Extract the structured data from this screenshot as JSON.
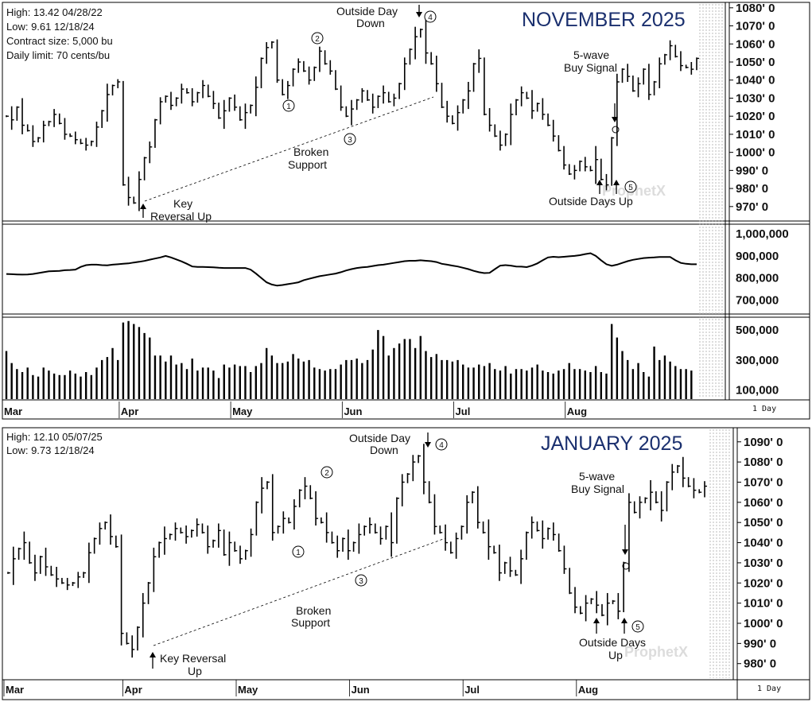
{
  "palette": {
    "bar": "#000000",
    "accent_title": "#1a2f6e",
    "grid_hatch": "#bbbbbb",
    "annotation": "#000000"
  },
  "chart_data": [
    {
      "type": "ohlc",
      "title": "NOVEMBER 2025",
      "info": [
        "High: 13.42   04/28/22",
        "Low:   9.61   12/18/24",
        "Contract size: 5,000 bu",
        "Daily limit: 70 cents/bu"
      ],
      "ylim": [
        962,
        1083
      ],
      "yticks": [
        {
          "v": 1080,
          "t": "1080' 0"
        },
        {
          "v": 1070,
          "t": "1070' 0"
        },
        {
          "v": 1060,
          "t": "1060' 0"
        },
        {
          "v": 1050,
          "t": "1050' 0"
        },
        {
          "v": 1040,
          "t": "1040' 0"
        },
        {
          "v": 1030,
          "t": "1030' 0"
        },
        {
          "v": 1020,
          "t": "1020' 0"
        },
        {
          "v": 1010,
          "t": "1010' 0"
        },
        {
          "v": 1000,
          "t": "1000' 0"
        },
        {
          "v": 990,
          "t": "990' 0"
        },
        {
          "v": 980,
          "t": "980' 0"
        },
        {
          "v": 970,
          "t": "970' 0"
        }
      ],
      "months": [
        {
          "label": "Mar",
          "i": 0
        },
        {
          "label": "Apr",
          "i": 22
        },
        {
          "label": "May",
          "i": 43
        },
        {
          "label": "Jun",
          "i": 64
        },
        {
          "label": "Jul",
          "i": 85
        },
        {
          "label": "Aug",
          "i": 106
        }
      ],
      "interval_label": "1 Day",
      "closes": [
        1020,
        1018,
        1025,
        1015,
        1012,
        1006,
        1008,
        1015,
        1017,
        1021,
        1016,
        1010,
        1009,
        1007,
        1005,
        1004,
        1006,
        1014,
        1023,
        1032,
        1037,
        1039,
        982,
        975,
        972,
        985,
        997,
        1003,
        1018,
        1028,
        1031,
        1026,
        1030,
        1035,
        1033,
        1028,
        1033,
        1037,
        1031,
        1027,
        1019,
        1023,
        1030,
        1025,
        1018,
        1022,
        1026,
        1036,
        1052,
        1058,
        1061,
        1040,
        1032,
        1037,
        1046,
        1050,
        1045,
        1040,
        1047,
        1056,
        1049,
        1045,
        1035,
        1025,
        1020,
        1024,
        1029,
        1034,
        1029,
        1025,
        1031,
        1033,
        1028,
        1030,
        1038,
        1049,
        1057,
        1064,
        1068,
        1055,
        1049,
        1038,
        1025,
        1020,
        1016,
        1022,
        1029,
        1034,
        1049,
        1052,
        1021,
        1015,
        1009,
        1004,
        1010,
        1021,
        1029,
        1033,
        1030,
        1023,
        1027,
        1021,
        1015,
        1009,
        1001,
        993,
        988,
        990,
        995,
        992,
        990,
        996,
        985,
        982,
        1008,
        1039,
        1046,
        1042,
        1034,
        1038,
        1046,
        1032,
        1039,
        1049,
        1054,
        1059,
        1053,
        1048,
        1047,
        1046,
        1052
      ],
      "ranges": [
        1,
        11,
        1,
        10,
        1,
        6,
        1,
        5,
        1,
        6,
        1,
        6,
        1,
        5,
        1,
        6,
        1,
        6,
        1,
        12,
        1,
        3,
        1,
        9,
        1,
        9,
        1,
        6,
        1,
        5,
        1,
        5,
        1,
        6,
        1,
        5,
        1,
        6,
        1,
        6,
        1,
        12,
        1,
        4,
        1,
        10,
        1,
        12,
        1,
        6,
        1,
        3,
        1,
        5,
        1,
        4,
        1,
        5,
        1,
        5,
        1,
        4,
        1,
        4,
        1,
        10,
        1,
        3,
        1,
        7,
        1,
        8,
        1,
        5,
        1,
        7,
        1,
        11,
        1,
        12,
        1,
        9,
        1,
        7,
        1,
        8,
        1,
        10,
        1,
        10,
        1,
        7,
        1,
        6,
        1,
        12,
        1,
        7,
        1,
        9,
        1,
        6,
        1,
        6,
        1,
        5,
        1,
        6,
        1,
        5,
        1,
        15,
        1,
        6,
        1,
        9,
        1,
        6,
        1,
        7,
        1,
        6,
        1,
        7,
        1,
        6,
        1,
        6,
        1,
        6
      ],
      "volume_ylim": [
        40000,
        580000
      ],
      "volume_ticks": [
        {
          "v": 500000,
          "t": "500,000"
        },
        {
          "v": 300000,
          "t": "300,000"
        },
        {
          "v": 100000,
          "t": "100,000"
        }
      ],
      "volume": [
        360000,
        280000,
        240000,
        220000,
        250000,
        200000,
        190000,
        250000,
        230000,
        210000,
        200000,
        200000,
        230000,
        210000,
        190000,
        220000,
        200000,
        250000,
        300000,
        320000,
        380000,
        300000,
        550000,
        560000,
        540000,
        520000,
        480000,
        450000,
        330000,
        330000,
        290000,
        330000,
        270000,
        280000,
        240000,
        310000,
        230000,
        250000,
        250000,
        230000,
        180000,
        270000,
        250000,
        270000,
        260000,
        260000,
        220000,
        260000,
        280000,
        380000,
        330000,
        280000,
        280000,
        290000,
        340000,
        310000,
        290000,
        300000,
        250000,
        240000,
        230000,
        240000,
        240000,
        270000,
        300000,
        300000,
        310000,
        280000,
        300000,
        370000,
        500000,
        460000,
        330000,
        380000,
        410000,
        440000,
        440000,
        380000,
        460000,
        360000,
        320000,
        340000,
        300000,
        300000,
        290000,
        300000,
        270000,
        250000,
        250000,
        270000,
        260000,
        280000,
        240000,
        230000,
        260000,
        210000,
        240000,
        240000,
        230000,
        250000,
        270000,
        230000,
        220000,
        210000,
        230000,
        240000,
        280000,
        240000,
        240000,
        230000,
        220000,
        260000,
        220000,
        210000,
        540000,
        450000,
        360000,
        300000,
        240000,
        280000,
        220000,
        190000,
        390000,
        300000,
        330000,
        290000,
        260000,
        240000,
        240000,
        230000
      ],
      "oi_ylim": [
        640000,
        1040000
      ],
      "oi_ticks": [
        {
          "v": 1000000,
          "t": "1,000,000"
        },
        {
          "v": 900000,
          "t": "900,000"
        },
        {
          "v": 800000,
          "t": "800,000"
        },
        {
          "v": 700000,
          "t": "700,000"
        }
      ],
      "oi": [
        818000,
        817000,
        816000,
        815000,
        816000,
        818000,
        822000,
        826000,
        830000,
        831000,
        832000,
        835000,
        836000,
        838000,
        850000,
        858000,
        860000,
        860000,
        858000,
        857000,
        860000,
        862000,
        864000,
        866000,
        870000,
        873000,
        877000,
        883000,
        888000,
        893000,
        900000,
        893000,
        884000,
        875000,
        864000,
        852000,
        850000,
        850000,
        849000,
        848000,
        846000,
        845000,
        845000,
        845000,
        845000,
        845000,
        838000,
        820000,
        800000,
        780000,
        770000,
        765000,
        768000,
        772000,
        776000,
        780000,
        790000,
        796000,
        802000,
        808000,
        812000,
        816000,
        820000,
        826000,
        834000,
        840000,
        845000,
        848000,
        850000,
        854000,
        858000,
        860000,
        864000,
        868000,
        872000,
        876000,
        878000,
        878000,
        880000,
        878000,
        876000,
        872000,
        864000,
        860000,
        856000,
        852000,
        846000,
        840000,
        832000,
        826000,
        822000,
        823000,
        840000,
        856000,
        858000,
        856000,
        852000,
        851000,
        849000,
        856000,
        866000,
        880000,
        893000,
        896000,
        894000,
        896000,
        898000,
        900000,
        903000,
        908000,
        912000,
        900000,
        880000,
        862000,
        855000,
        860000,
        868000,
        876000,
        882000,
        886000,
        890000,
        892000,
        893000,
        895000,
        895000,
        895000,
        880000,
        868000,
        864000,
        862000,
        862000
      ],
      "annotations": [
        {
          "text": "Outside Day",
          "i": 104
        },
        {
          "text": "Down",
          "i": 104
        },
        {
          "text": "5-wave",
          "i": 120
        },
        {
          "text": "Buy Signal",
          "i": 120
        },
        {
          "text": "Broken",
          "i": 0
        },
        {
          "text": "Support",
          "i": 0
        },
        {
          "text": "Key",
          "i": 0
        },
        {
          "text": "Reversal Up",
          "i": 0
        },
        {
          "text": "Outside Days Up",
          "i": 0
        }
      ],
      "wave_labels": [
        "1",
        "2",
        "3",
        "4",
        "5"
      ],
      "watermark": "ProphetX"
    },
    {
      "type": "ohlc",
      "title": "JANUARY 2025",
      "info": [
        "High: 12.10  05/07/25",
        "Low:   9.73   12/18/24"
      ],
      "ylim": [
        972,
        1097
      ],
      "yticks": [
        {
          "v": 1090,
          "t": "1090' 0"
        },
        {
          "v": 1080,
          "t": "1080' 0"
        },
        {
          "v": 1070,
          "t": "1070' 0"
        },
        {
          "v": 1060,
          "t": "1060' 0"
        },
        {
          "v": 1050,
          "t": "1050' 0"
        },
        {
          "v": 1040,
          "t": "1040' 0"
        },
        {
          "v": 1030,
          "t": "1030' 0"
        },
        {
          "v": 1020,
          "t": "1020' 0"
        },
        {
          "v": 1010,
          "t": "1010' 0"
        },
        {
          "v": 1000,
          "t": "1000' 0"
        },
        {
          "v": 990,
          "t": "990' 0"
        },
        {
          "v": 980,
          "t": "980' 0"
        }
      ],
      "months": [
        {
          "label": "Mar",
          "i": 0
        },
        {
          "label": "Apr",
          "i": 22
        },
        {
          "label": "May",
          "i": 43
        },
        {
          "label": "Jun",
          "i": 64
        },
        {
          "label": "Jul",
          "i": 85
        },
        {
          "label": "Aug",
          "i": 106
        }
      ],
      "interval_label": "1 Day",
      "closes": [
        1025,
        1032,
        1037,
        1040,
        1030,
        1025,
        1033,
        1028,
        1024,
        1022,
        1020,
        1019,
        1020,
        1023,
        1025,
        1035,
        1042,
        1047,
        1050,
        1043,
        1038,
        995,
        990,
        987,
        998,
        1010,
        1020,
        1033,
        1040,
        1042,
        1044,
        1047,
        1045,
        1043,
        1046,
        1049,
        1045,
        1038,
        1041,
        1046,
        1034,
        1040,
        1036,
        1032,
        1036,
        1044,
        1060,
        1067,
        1070,
        1045,
        1048,
        1052,
        1050,
        1058,
        1066,
        1068,
        1062,
        1052,
        1050,
        1045,
        1040,
        1036,
        1042,
        1036,
        1040,
        1044,
        1048,
        1049,
        1045,
        1042,
        1048,
        1040,
        1062,
        1070,
        1074,
        1080,
        1083,
        1070,
        1060,
        1048,
        1045,
        1040,
        1035,
        1042,
        1048,
        1060,
        1065,
        1050,
        1045,
        1038,
        1035,
        1025,
        1030,
        1026,
        1024,
        1032,
        1045,
        1050,
        1046,
        1042,
        1047,
        1044,
        1036,
        1027,
        1015,
        1008,
        1005,
        1010,
        1012,
        1009,
        1004,
        1010,
        1011,
        1006,
        1030,
        1060,
        1055,
        1060,
        1062,
        1065,
        1060,
        1056,
        1070,
        1075,
        1078,
        1072,
        1068,
        1066,
        1065,
        1068
      ],
      "ranges": [
        1,
        12,
        1,
        11,
        1,
        8,
        1,
        9,
        1,
        8,
        1,
        5,
        1,
        5,
        1,
        10,
        1,
        6,
        1,
        8,
        1,
        12,
        1,
        8,
        1,
        10,
        1,
        9,
        1,
        12,
        1,
        6,
        1,
        7,
        1,
        6,
        1,
        7,
        1,
        7,
        1,
        11,
        1,
        5,
        1,
        6,
        1,
        11,
        1,
        8,
        1,
        7,
        1,
        7,
        1,
        9,
        1,
        7,
        1,
        10,
        1,
        7,
        1,
        9,
        1,
        11,
        1,
        7,
        1,
        6,
        1,
        14,
        1,
        8,
        1,
        7,
        1,
        12,
        1,
        8,
        1,
        8,
        1,
        6,
        1,
        7,
        1,
        6,
        1,
        13,
        1,
        8,
        1,
        6,
        1,
        9,
        1,
        6,
        1,
        10,
        1,
        6,
        1,
        5,
        1,
        6,
        1,
        8,
        1,
        8,
        1,
        10,
        1,
        8,
        1,
        9,
        1,
        6
      ],
      "annotations": [
        {
          "text": "Outside Day",
          "i": 0
        },
        {
          "text": "Down",
          "i": 0
        },
        {
          "text": "5-wave",
          "i": 0
        },
        {
          "text": "Buy Signal",
          "i": 0
        },
        {
          "text": "Broken",
          "i": 0
        },
        {
          "text": "Support",
          "i": 0
        },
        {
          "text": "Key Reversal",
          "i": 0
        },
        {
          "text": "Up",
          "i": 0
        },
        {
          "text": "Outside Days",
          "i": 0
        },
        {
          "text": "Up",
          "i": 0
        }
      ],
      "wave_labels": [
        "1",
        "2",
        "3",
        "4",
        "5"
      ],
      "watermark": "ProphetX"
    }
  ]
}
